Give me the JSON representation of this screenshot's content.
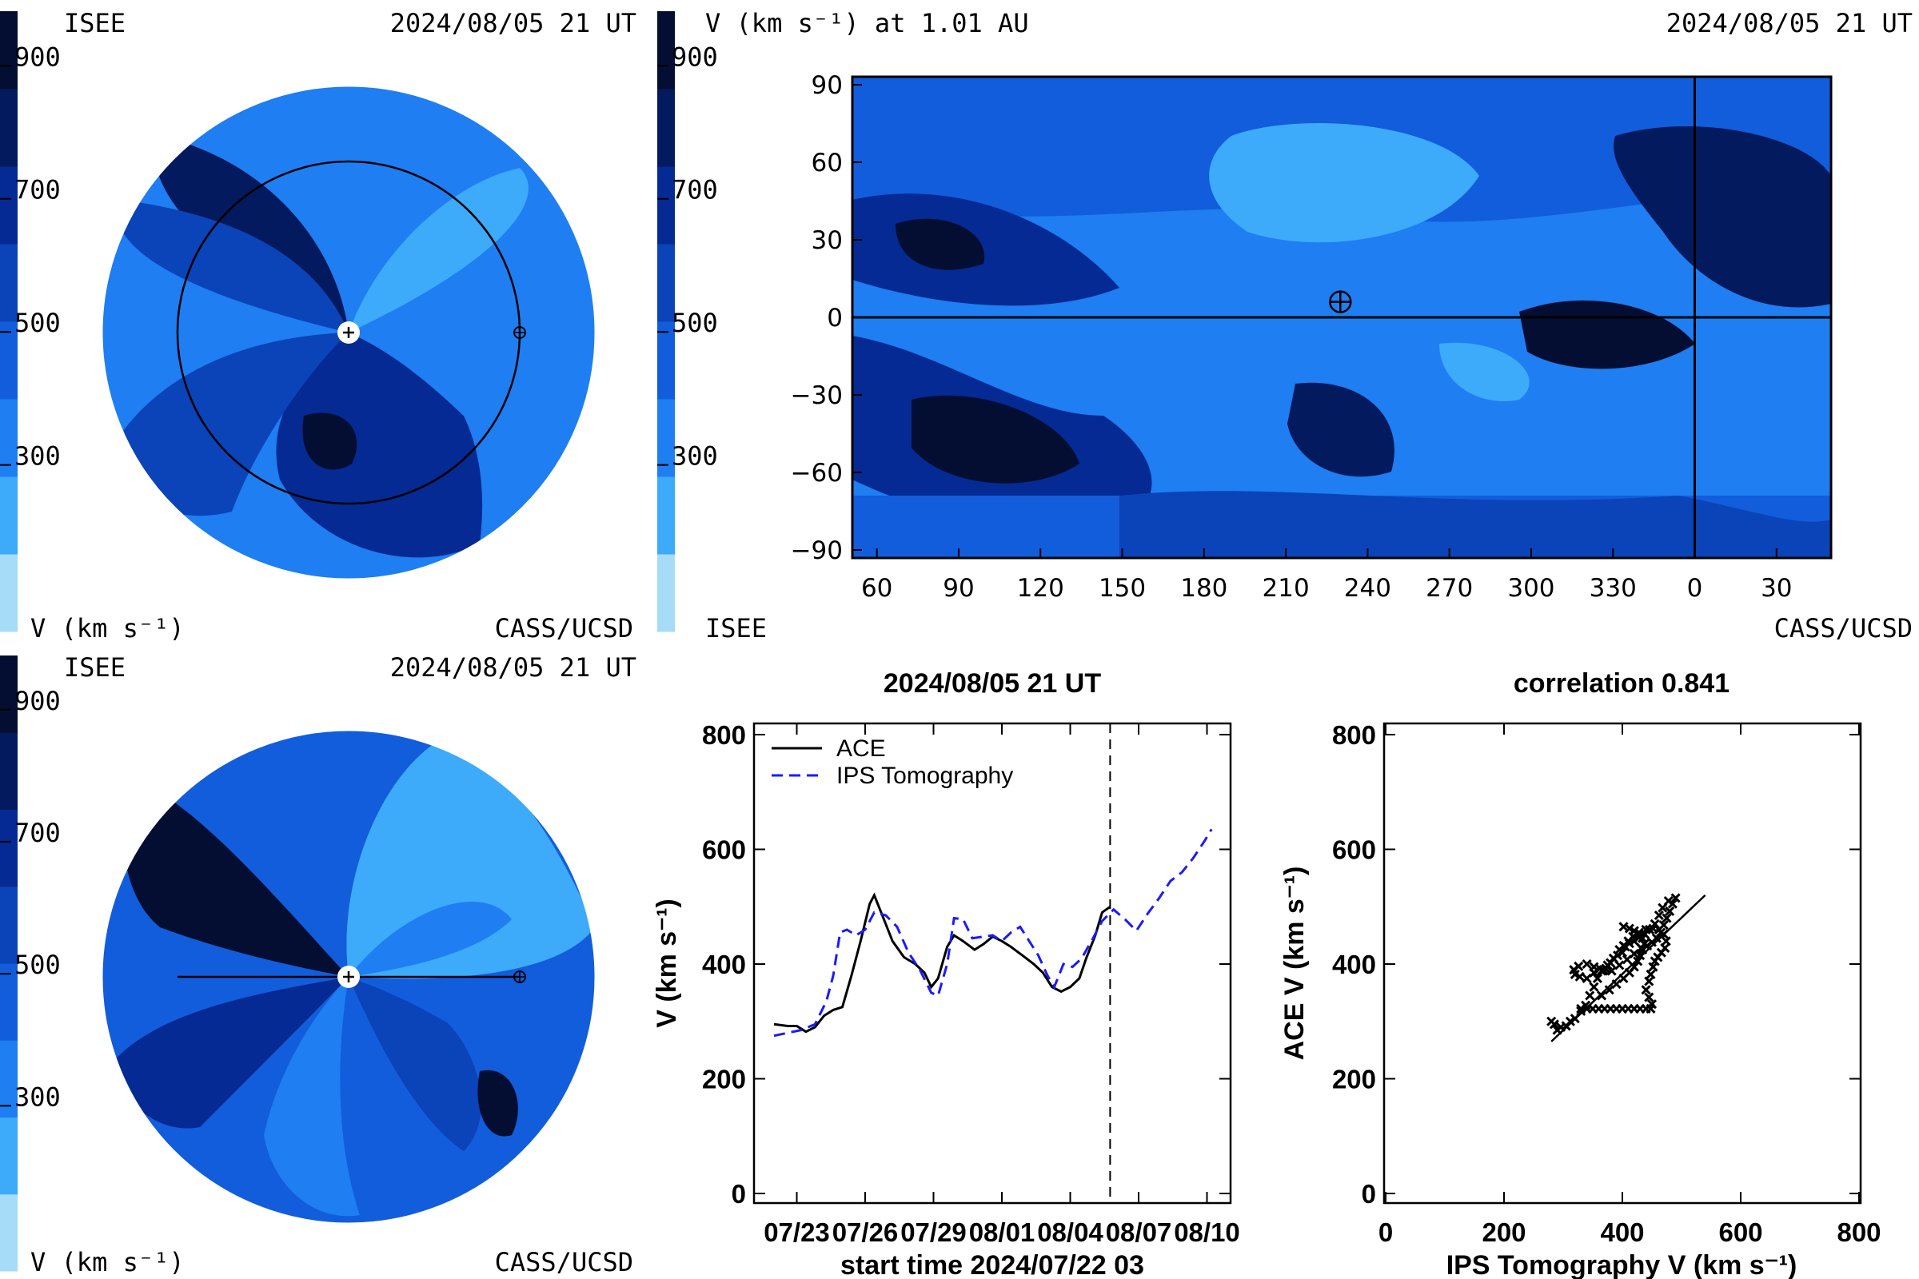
{
  "palette": [
    "#a6dcf7",
    "#3daafa",
    "#1e7ef2",
    "#125ddc",
    "#0b43b8",
    "#052a93",
    "#041a5e",
    "#040e32"
  ],
  "panels": {
    "top_left": {
      "org": "ISEE",
      "time": "2024/08/05 21 UT",
      "unit": "V (km s⁻¹)",
      "credit": "CASS/UCSD"
    },
    "bottom_left": {
      "org": "ISEE",
      "time": "2024/08/05 21 UT",
      "unit": "V (km s⁻¹)",
      "credit": "CASS/UCSD"
    },
    "top_right": {
      "title": "V (km s⁻¹) at 1.01 AU",
      "time": "2024/08/05 21 UT",
      "org": "ISEE",
      "credit": "CASS/UCSD"
    },
    "timeseries": {
      "title": "2024/08/05 21 UT",
      "xlabel": "start time 2024/07/22 03",
      "ylabel": "V (km s⁻¹)"
    },
    "scatter": {
      "title": "correlation 0.841",
      "xlabel": "IPS Tomography V (km s⁻¹)",
      "ylabel": "ACE V (km s⁻¹)"
    }
  },
  "colorbar_ticks": [
    "900",
    "700",
    "500",
    "300"
  ],
  "chart_data": [
    {
      "type": "heatmap",
      "title": "V (km s⁻¹) at 1.01 AU",
      "x_ticks": [
        "60",
        "90",
        "120",
        "150",
        "180",
        "210",
        "240",
        "270",
        "300",
        "330",
        "0",
        "30"
      ],
      "y_ticks": [
        "90",
        "60",
        "30",
        "0",
        "−30",
        "−60",
        "−90"
      ],
      "earth_marker": {
        "longitude": 230,
        "latitude": 6
      },
      "crosshair": {
        "longitude": 0,
        "latitude": 0
      }
    },
    {
      "type": "line",
      "title": "2024/08/05 21 UT",
      "x_ticks": [
        "07/23",
        "07/26",
        "07/29",
        "08/01",
        "08/04",
        "08/07",
        "08/10"
      ],
      "x_tick_days": [
        1,
        4,
        7,
        10,
        13,
        16,
        19
      ],
      "ylim": [
        0,
        800
      ],
      "y_ticks": [
        "0",
        "200",
        "400",
        "600",
        "800"
      ],
      "current_day": 14.75,
      "series": [
        {
          "name": "ACE",
          "color": "#000000",
          "style": "solid",
          "points": [
            [
              0,
              295
            ],
            [
              0.6,
              292
            ],
            [
              1,
              292
            ],
            [
              1.4,
              282
            ],
            [
              1.8,
              290
            ],
            [
              2.2,
              310
            ],
            [
              2.6,
              320
            ],
            [
              3,
              325
            ],
            [
              3.4,
              380
            ],
            [
              3.8,
              440
            ],
            [
              4.2,
              505
            ],
            [
              4.4,
              520
            ],
            [
              4.7,
              490
            ],
            [
              5.2,
              440
            ],
            [
              5.7,
              412
            ],
            [
              6.2,
              400
            ],
            [
              6.6,
              385
            ],
            [
              6.9,
              360
            ],
            [
              7.2,
              375
            ],
            [
              7.6,
              430
            ],
            [
              7.9,
              450
            ],
            [
              8.3,
              440
            ],
            [
              8.8,
              425
            ],
            [
              9.2,
              435
            ],
            [
              9.6,
              448
            ],
            [
              10,
              440
            ],
            [
              10.4,
              430
            ],
            [
              10.9,
              415
            ],
            [
              11.4,
              400
            ],
            [
              11.8,
              385
            ],
            [
              12.2,
              360
            ],
            [
              12.6,
              352
            ],
            [
              13,
              360
            ],
            [
              13.4,
              375
            ],
            [
              13.7,
              410
            ],
            [
              14.1,
              450
            ],
            [
              14.4,
              490
            ],
            [
              14.75,
              500
            ]
          ]
        },
        {
          "name": "IPS Tomography",
          "color": "#1a1aff",
          "style": "dashed",
          "points": [
            [
              0,
              275
            ],
            [
              0.6,
              280
            ],
            [
              1.2,
              285
            ],
            [
              1.8,
              295
            ],
            [
              2.3,
              335
            ],
            [
              2.6,
              380
            ],
            [
              2.9,
              455
            ],
            [
              3.2,
              460
            ],
            [
              3.6,
              450
            ],
            [
              4,
              460
            ],
            [
              4.4,
              490
            ],
            [
              4.9,
              485
            ],
            [
              5.4,
              465
            ],
            [
              5.9,
              420
            ],
            [
              6.4,
              390
            ],
            [
              6.9,
              350
            ],
            [
              7.2,
              345
            ],
            [
              7.6,
              400
            ],
            [
              7.9,
              480
            ],
            [
              8.3,
              478
            ],
            [
              8.7,
              445
            ],
            [
              9.2,
              448
            ],
            [
              9.6,
              450
            ],
            [
              10,
              440
            ],
            [
              10.4,
              455
            ],
            [
              10.8,
              465
            ],
            [
              11.2,
              440
            ],
            [
              11.6,
              415
            ],
            [
              12,
              380
            ],
            [
              12.3,
              360
            ],
            [
              12.7,
              400
            ],
            [
              13.1,
              395
            ],
            [
              13.5,
              410
            ],
            [
              14,
              445
            ],
            [
              14.4,
              475
            ],
            [
              14.9,
              495
            ],
            [
              15.4,
              478
            ],
            [
              15.9,
              458
            ],
            [
              16.4,
              488
            ],
            [
              16.9,
              515
            ],
            [
              17.4,
              545
            ],
            [
              17.9,
              560
            ],
            [
              18.4,
              585
            ],
            [
              18.9,
              615
            ],
            [
              19.2,
              635
            ]
          ]
        }
      ]
    },
    {
      "type": "scatter",
      "title": "correlation 0.841",
      "xlim": [
        0,
        800
      ],
      "ylim": [
        0,
        800
      ],
      "x_ticks": [
        "0",
        "200",
        "400",
        "600",
        "800"
      ],
      "y_ticks": [
        "0",
        "200",
        "400",
        "600",
        "800"
      ],
      "fit_line": [
        [
          280,
          265
        ],
        [
          540,
          520
        ]
      ],
      "points": [
        [
          280,
          300
        ],
        [
          285,
          295
        ],
        [
          290,
          285
        ],
        [
          296,
          290
        ],
        [
          305,
          292
        ],
        [
          312,
          300
        ],
        [
          320,
          305
        ],
        [
          330,
          318
        ],
        [
          338,
          328
        ],
        [
          345,
          345
        ],
        [
          352,
          360
        ],
        [
          358,
          375
        ],
        [
          365,
          388
        ],
        [
          362,
          392
        ],
        [
          352,
          385
        ],
        [
          340,
          375
        ],
        [
          328,
          378
        ],
        [
          320,
          382
        ],
        [
          318,
          390
        ],
        [
          326,
          396
        ],
        [
          340,
          400
        ],
        [
          352,
          395
        ],
        [
          368,
          390
        ],
        [
          382,
          388
        ],
        [
          395,
          398
        ],
        [
          408,
          408
        ],
        [
          420,
          418
        ],
        [
          432,
          428
        ],
        [
          442,
          432
        ],
        [
          450,
          438
        ],
        [
          458,
          445
        ],
        [
          465,
          455
        ],
        [
          470,
          468
        ],
        [
          475,
          480
        ],
        [
          480,
          492
        ],
        [
          485,
          505
        ],
        [
          490,
          515
        ],
        [
          478,
          510
        ],
        [
          468,
          498
        ],
        [
          462,
          485
        ],
        [
          455,
          470
        ],
        [
          446,
          460
        ],
        [
          438,
          452
        ],
        [
          428,
          446
        ],
        [
          420,
          440
        ],
        [
          412,
          436
        ],
        [
          405,
          430
        ],
        [
          400,
          420
        ],
        [
          392,
          415
        ],
        [
          385,
          410
        ],
        [
          380,
          402
        ],
        [
          375,
          398
        ],
        [
          372,
          392
        ],
        [
          368,
          388
        ],
        [
          395,
          425
        ],
        [
          402,
          432
        ],
        [
          410,
          440
        ],
        [
          418,
          448
        ],
        [
          428,
          455
        ],
        [
          440,
          460
        ],
        [
          452,
          462
        ],
        [
          462,
          460
        ],
        [
          470,
          452
        ],
        [
          474,
          440
        ],
        [
          472,
          428
        ],
        [
          466,
          420
        ],
        [
          460,
          412
        ],
        [
          455,
          405
        ],
        [
          452,
          395
        ],
        [
          448,
          382
        ],
        [
          445,
          370
        ],
        [
          440,
          355
        ],
        [
          445,
          342
        ],
        [
          450,
          330
        ],
        [
          448,
          322
        ],
        [
          440,
          322
        ],
        [
          430,
          322
        ],
        [
          420,
          322
        ],
        [
          410,
          322
        ],
        [
          400,
          322
        ],
        [
          390,
          322
        ],
        [
          380,
          322
        ],
        [
          370,
          322
        ],
        [
          360,
          322
        ],
        [
          350,
          322
        ],
        [
          340,
          322
        ],
        [
          330,
          322
        ],
        [
          365,
          345
        ],
        [
          378,
          355
        ],
        [
          390,
          365
        ],
        [
          402,
          375
        ],
        [
          412,
          385
        ],
        [
          420,
          395
        ],
        [
          426,
          405
        ],
        [
          430,
          415
        ],
        [
          434,
          425
        ],
        [
          437,
          435
        ],
        [
          434,
          445
        ],
        [
          428,
          452
        ],
        [
          420,
          458
        ],
        [
          412,
          462
        ],
        [
          402,
          465
        ]
      ]
    }
  ]
}
